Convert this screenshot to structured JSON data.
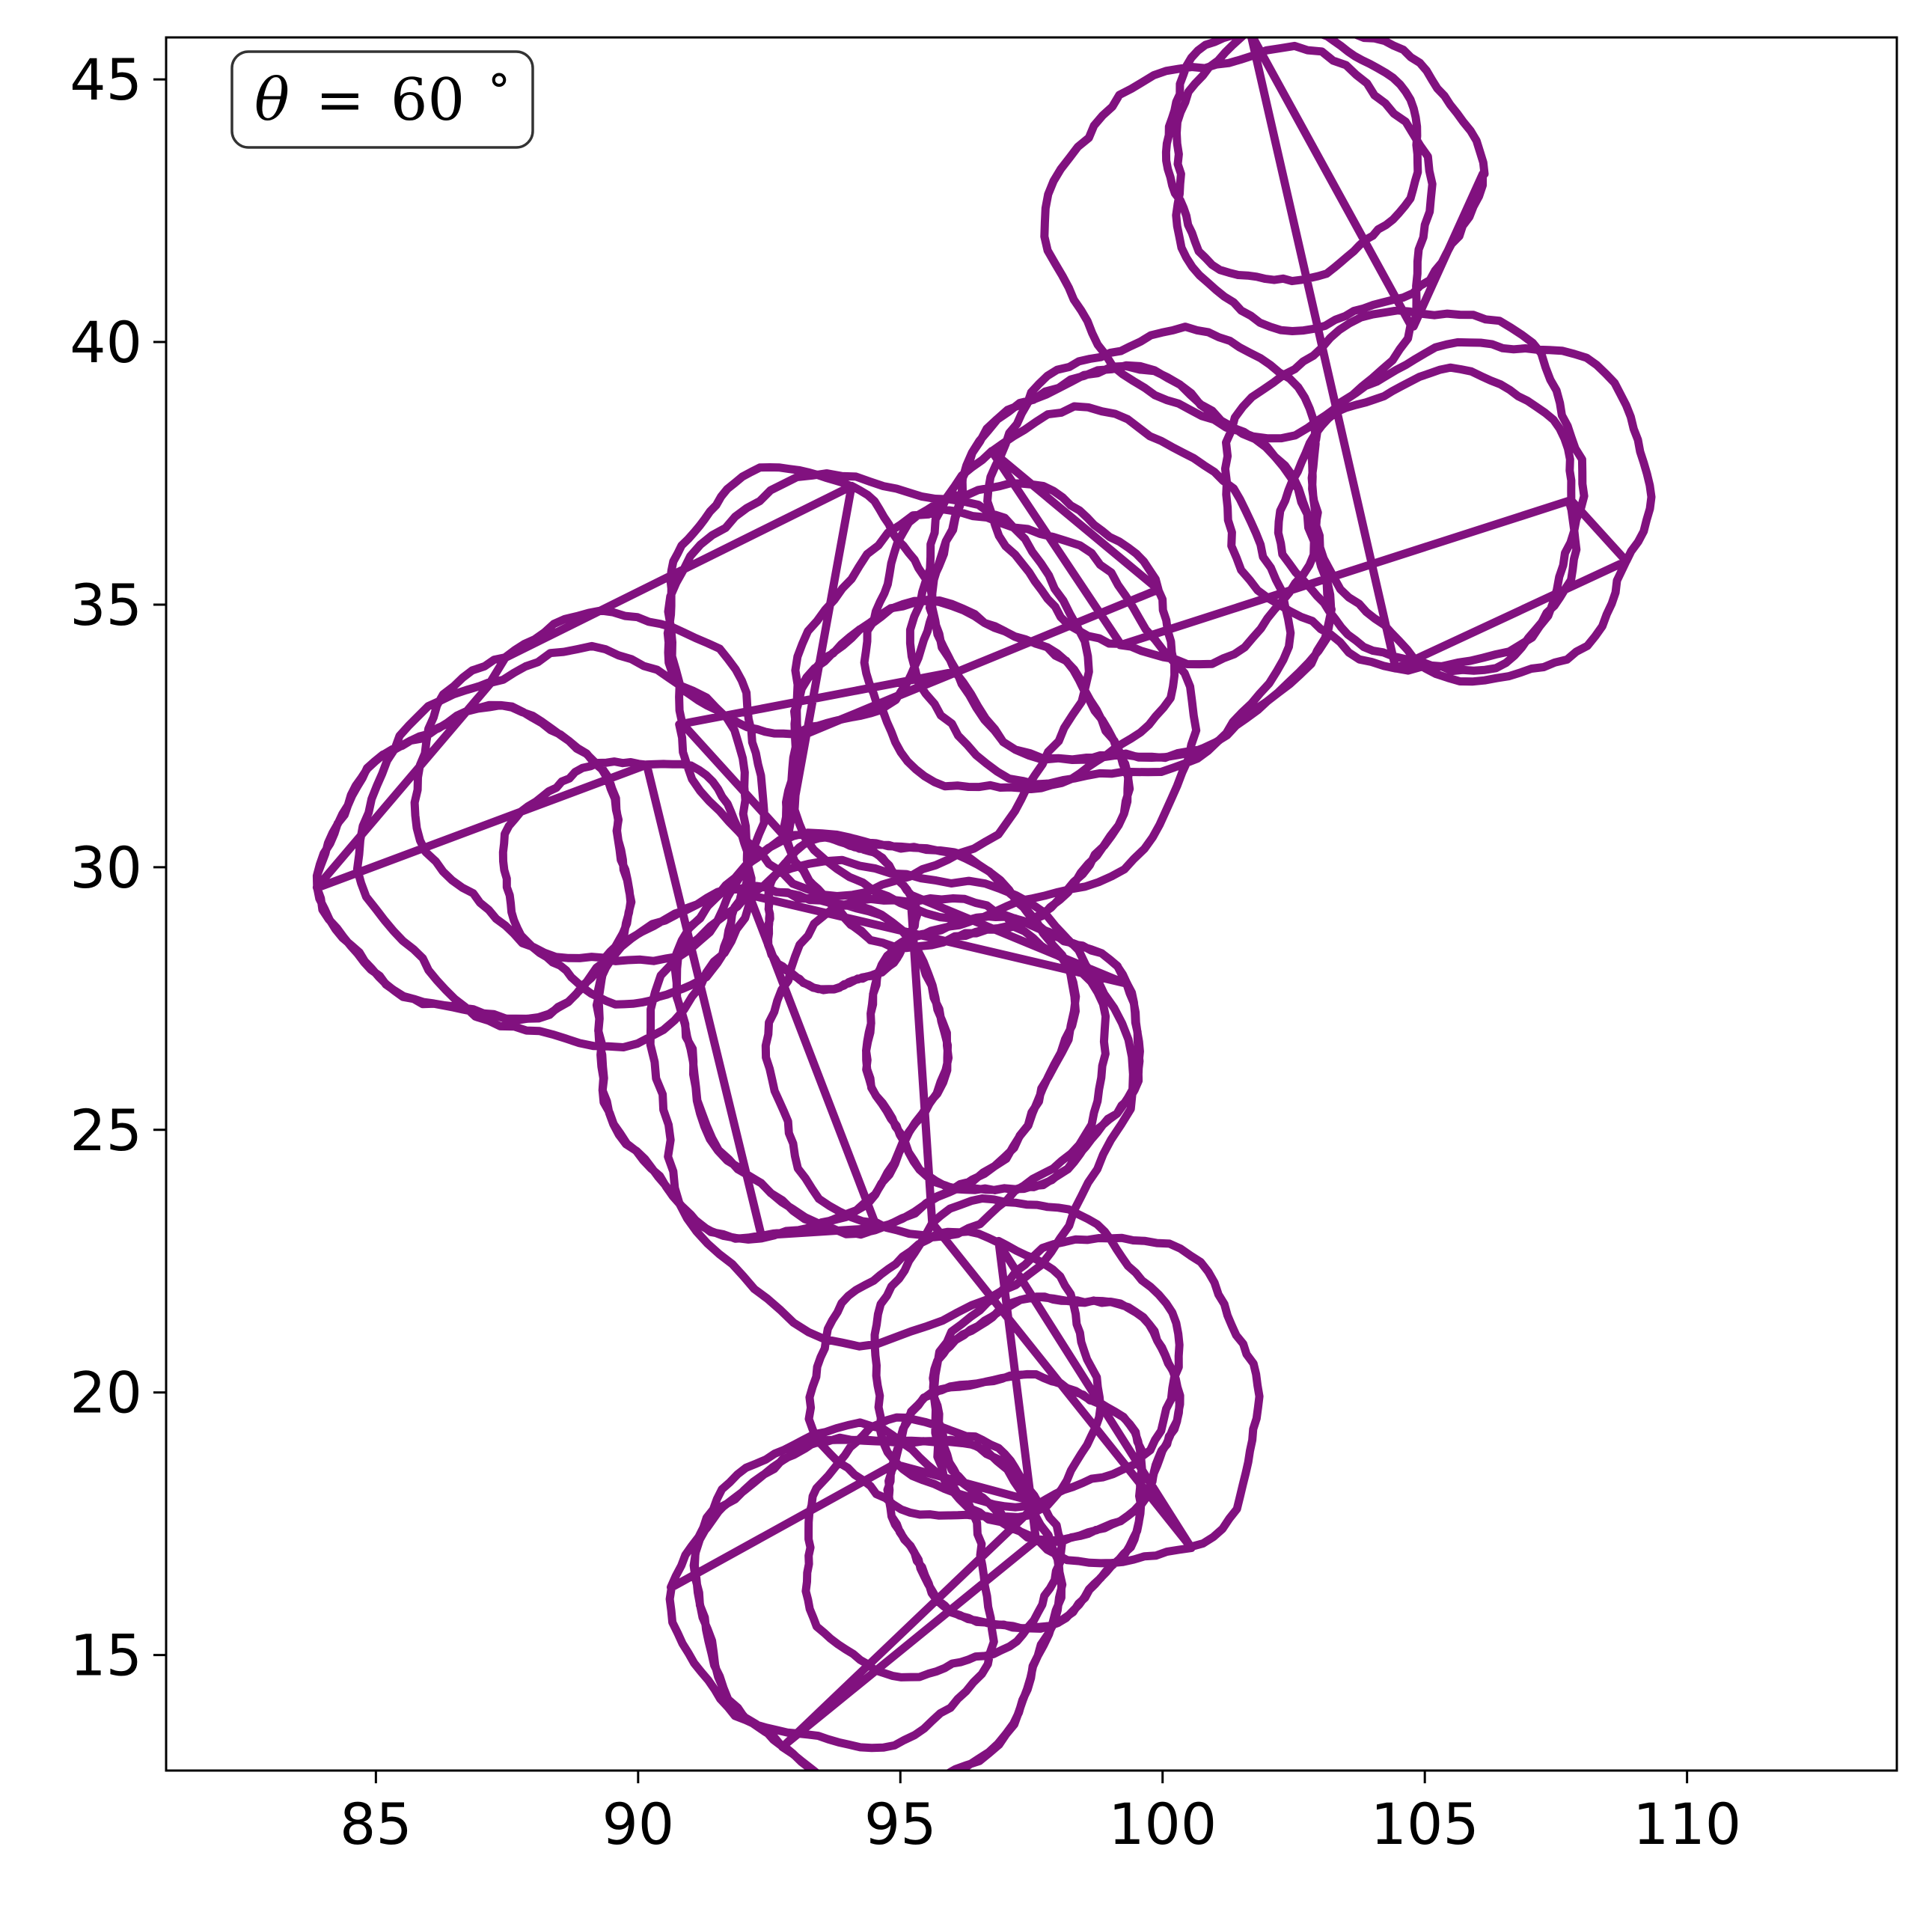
{
  "chart_data": {
    "type": "line",
    "title": "",
    "xlabel": "",
    "ylabel": "",
    "xlim": [
      81,
      114
    ],
    "ylim": [
      12.8,
      45.8
    ],
    "xticks": [
      85,
      90,
      95,
      100,
      105,
      110
    ],
    "yticks": [
      15,
      20,
      25,
      30,
      35,
      40,
      45
    ],
    "grid": false,
    "legend": "none",
    "line_color": "#7a0478",
    "annotation": {
      "symbol": "θ",
      "operator": "=",
      "value": "60",
      "unit": "°",
      "placement": "top-left"
    },
    "series": [
      {
        "loops": [
          {
            "cx": 103.0,
            "cy": 43.2,
            "r": 2.9
          },
          {
            "cx": 101.6,
            "cy": 42.0,
            "r": 3.6
          },
          {
            "cx": 102.4,
            "cy": 43.6,
            "r": 2.4
          },
          {
            "cx": 104.7,
            "cy": 37.2,
            "r": 3.4
          },
          {
            "cx": 106.1,
            "cy": 36.9,
            "r": 3.2
          },
          {
            "cx": 105.2,
            "cy": 36.6,
            "r": 2.8
          },
          {
            "cx": 100.0,
            "cy": 37.1,
            "r": 3.1
          },
          {
            "cx": 98.7,
            "cy": 35.0,
            "r": 3.5
          },
          {
            "cx": 97.2,
            "cy": 34.3,
            "r": 2.9
          },
          {
            "cx": 96.6,
            "cy": 32.8,
            "r": 3.8
          },
          {
            "cx": 99.3,
            "cy": 35.6,
            "r": 3.7
          },
          {
            "cx": 94.4,
            "cy": 33.6,
            "r": 3.9
          },
          {
            "cx": 95.9,
            "cy": 31.7,
            "r": 3.2
          },
          {
            "cx": 93.0,
            "cy": 35.0,
            "r": 2.5
          },
          {
            "cx": 89.2,
            "cy": 31.5,
            "r": 3.3
          },
          {
            "cx": 88.6,
            "cy": 30.4,
            "r": 3.7
          },
          {
            "cx": 87.0,
            "cy": 30.0,
            "r": 2.9
          },
          {
            "cx": 89.8,
            "cy": 29.8,
            "r": 2.3
          },
          {
            "cx": 92.5,
            "cy": 26.4,
            "r": 3.3
          },
          {
            "cx": 94.4,
            "cy": 27.0,
            "r": 3.7
          },
          {
            "cx": 95.6,
            "cy": 26.3,
            "r": 3.2
          },
          {
            "cx": 94.7,
            "cy": 25.7,
            "r": 4.5
          },
          {
            "cx": 96.9,
            "cy": 26.5,
            "r": 2.6
          },
          {
            "cx": 93.8,
            "cy": 29.1,
            "r": 1.4
          },
          {
            "cx": 97.3,
            "cy": 20.7,
            "r": 2.9
          },
          {
            "cx": 98.8,
            "cy": 19.8,
            "r": 3.1
          },
          {
            "cx": 96.1,
            "cy": 20.2,
            "r": 2.7
          },
          {
            "cx": 98.0,
            "cy": 19.6,
            "r": 2.3
          },
          {
            "cx": 94.6,
            "cy": 15.9,
            "r": 3.4
          },
          {
            "cx": 95.5,
            "cy": 17.0,
            "r": 2.4
          },
          {
            "cx": 97.2,
            "cy": 18.0,
            "r": 2.4
          },
          {
            "cx": 93.8,
            "cy": 16.2,
            "r": 3.0
          }
        ]
      }
    ]
  }
}
